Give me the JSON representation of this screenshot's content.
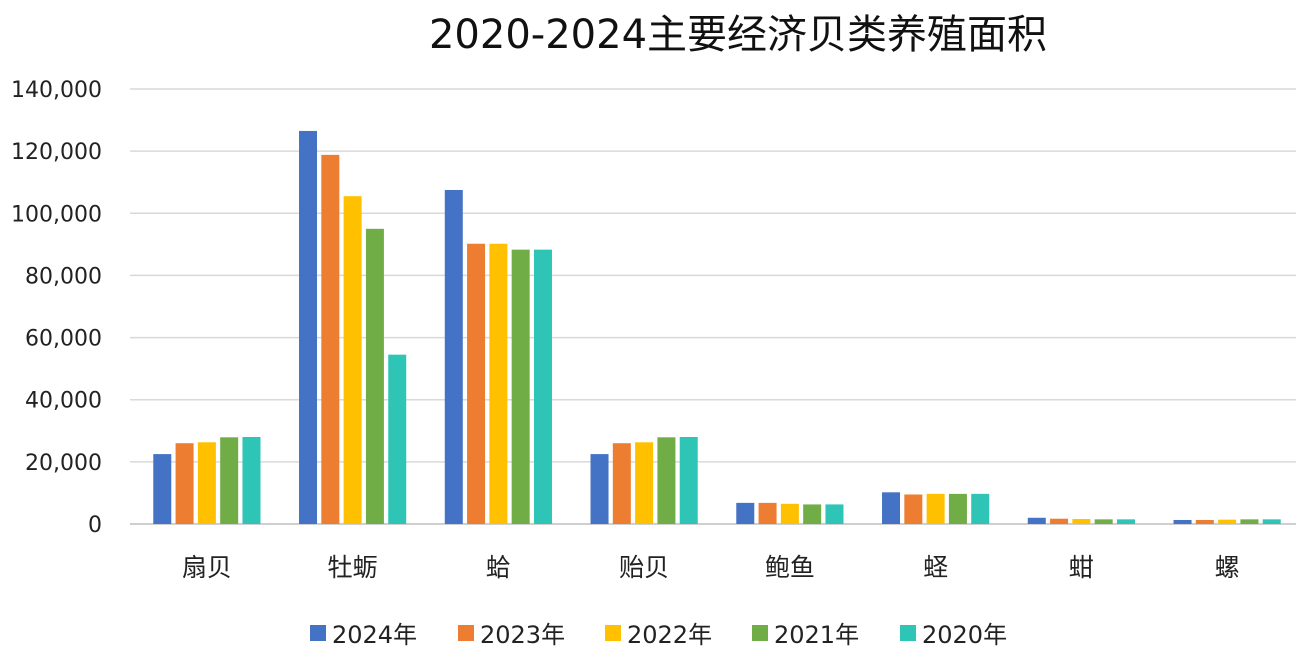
{
  "chart_data": {
    "type": "bar",
    "title": "2020-2024主要经济贝类养殖面积",
    "xlabel": "",
    "ylabel": "",
    "ylim": [
      0,
      140000
    ],
    "yticks": [
      0,
      20000,
      40000,
      60000,
      80000,
      100000,
      120000,
      140000
    ],
    "ytick_labels": [
      "0",
      "20,000",
      "40,000",
      "60,000",
      "80,000",
      "100,000",
      "120,000",
      "140,000"
    ],
    "grid": true,
    "legend_position": "bottom",
    "categories": [
      "扇贝",
      "牡蛎",
      "蛤",
      "贻贝",
      "鲍鱼",
      "蛏",
      "蚶",
      "螺"
    ],
    "series": [
      {
        "name": "2024年",
        "color": "#4472C4",
        "values": [
          22500,
          126500,
          107500,
          22500,
          6800,
          10200,
          2000,
          1300
        ]
      },
      {
        "name": "2023年",
        "color": "#ED7D31",
        "values": [
          26000,
          118800,
          90200,
          26000,
          6800,
          9500,
          1700,
          1300
        ]
      },
      {
        "name": "2022年",
        "color": "#FFC000",
        "values": [
          26300,
          105500,
          90200,
          26300,
          6500,
          9700,
          1600,
          1400
        ]
      },
      {
        "name": "2021年",
        "color": "#70AD47",
        "values": [
          27900,
          95000,
          88300,
          27900,
          6300,
          9700,
          1500,
          1500
        ]
      },
      {
        "name": "2020年",
        "color": "#2EC4B6",
        "values": [
          28000,
          54500,
          88300,
          28000,
          6300,
          9700,
          1500,
          1500
        ]
      }
    ]
  }
}
